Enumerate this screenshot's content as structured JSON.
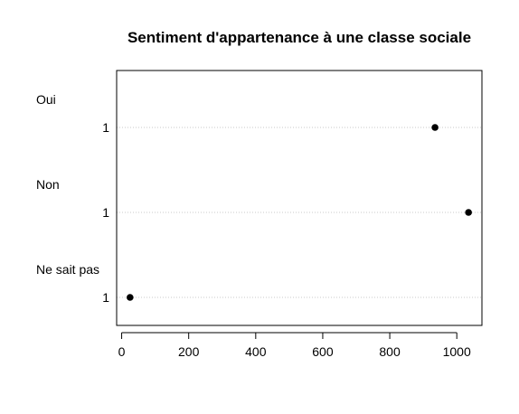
{
  "chart_data": {
    "type": "scatter",
    "title": "Sentiment d'appartenance à une classe sociale",
    "xlabel": "",
    "ylabel": "",
    "xlim": [
      -15,
      1075
    ],
    "x_ticks": [
      0,
      200,
      400,
      600,
      800,
      1000
    ],
    "x_tick_labels": [
      "0",
      "200",
      "400",
      "600",
      "800",
      "1000"
    ],
    "grid": "horizontal dotted lines at each row",
    "groups": [
      {
        "label": "Oui",
        "rows": [
          {
            "label": "1",
            "value": 935
          }
        ]
      },
      {
        "label": "Non",
        "rows": [
          {
            "label": "1",
            "value": 1035
          }
        ]
      },
      {
        "label": "Ne sait pas",
        "rows": [
          {
            "label": "1",
            "value": 25
          }
        ]
      }
    ]
  }
}
